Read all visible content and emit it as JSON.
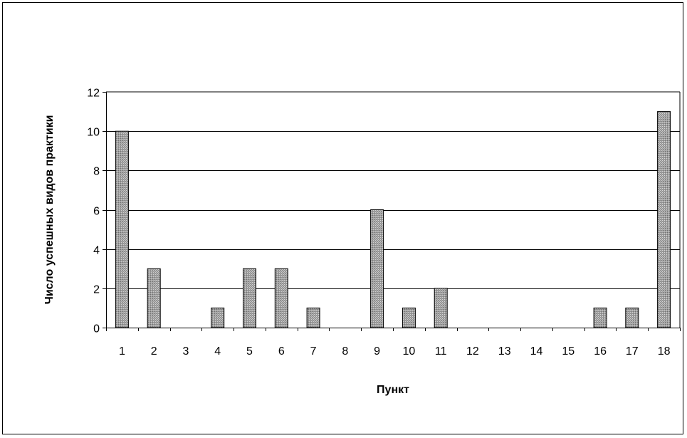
{
  "chart_data": {
    "type": "bar",
    "title": "",
    "xlabel": "Пункт",
    "ylabel": "Число успешных видов практики",
    "categories": [
      "1",
      "2",
      "3",
      "4",
      "5",
      "6",
      "7",
      "8",
      "9",
      "10",
      "11",
      "12",
      "13",
      "14",
      "15",
      "16",
      "17",
      "18"
    ],
    "values": [
      10,
      3,
      0,
      1,
      3,
      3,
      1,
      0,
      6,
      1,
      2,
      0,
      0,
      0,
      0,
      1,
      1,
      11
    ],
    "ylim": [
      0,
      12
    ],
    "yticks": [
      0,
      2,
      4,
      6,
      8,
      10,
      12
    ],
    "grid": true,
    "legend": "none",
    "bar_fill": "#a8a8a8",
    "bar_stroke": "#000000"
  }
}
